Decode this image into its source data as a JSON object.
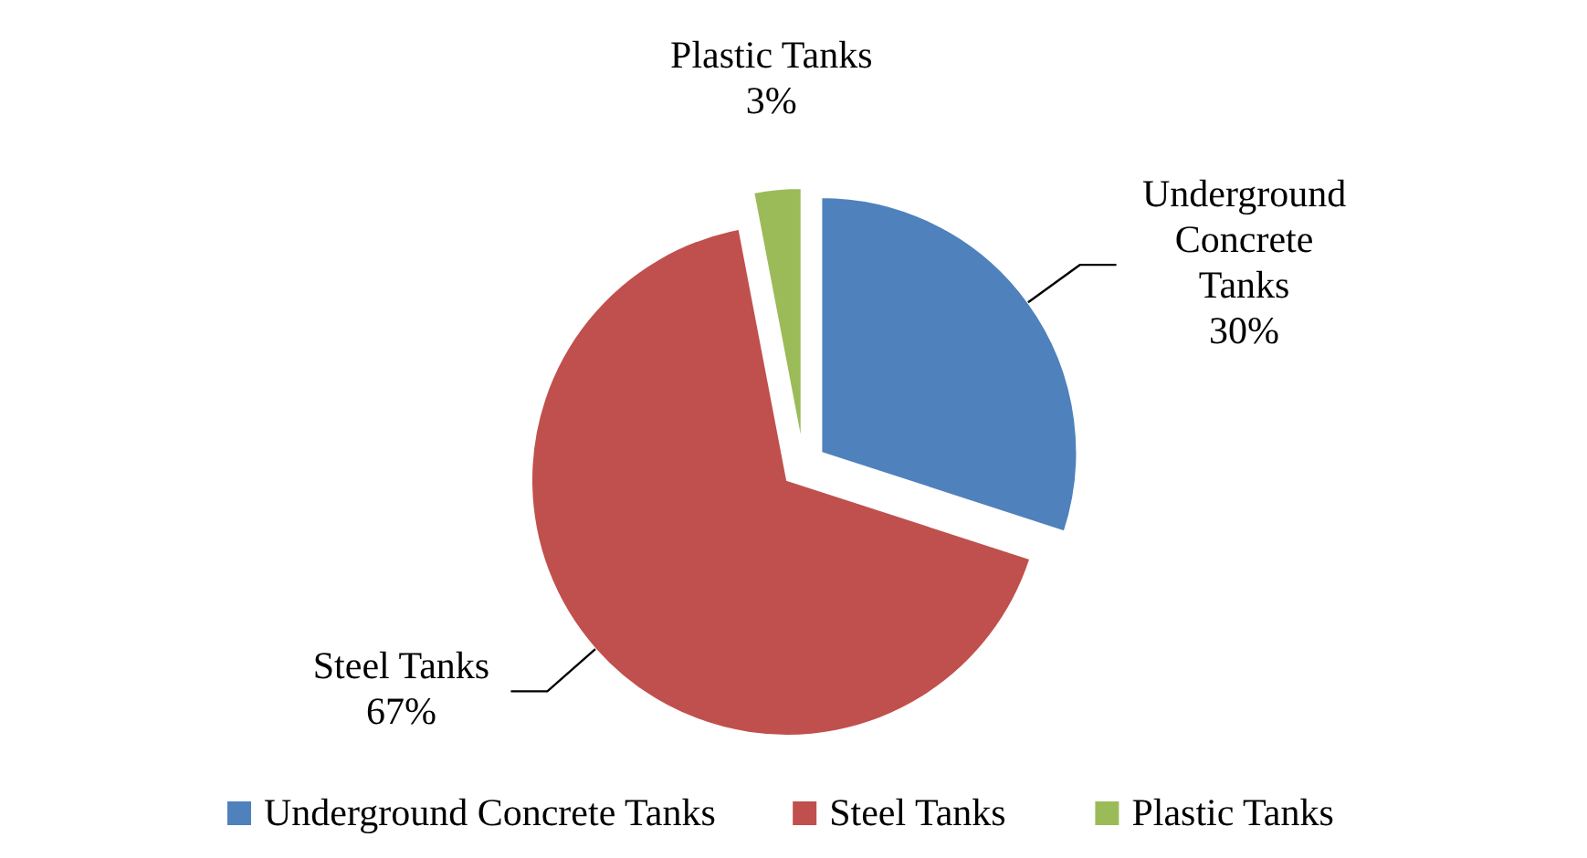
{
  "chart_data": {
    "type": "pie",
    "categories": [
      "Underground Concrete Tanks",
      "Steel Tanks",
      "Plastic Tanks"
    ],
    "values": [
      30,
      67,
      3
    ],
    "colors": [
      "#4f81bd",
      "#c0504d",
      "#9bbb59"
    ],
    "value_labels": [
      "30%",
      "67%",
      "3%"
    ],
    "legend": "bottom"
  }
}
